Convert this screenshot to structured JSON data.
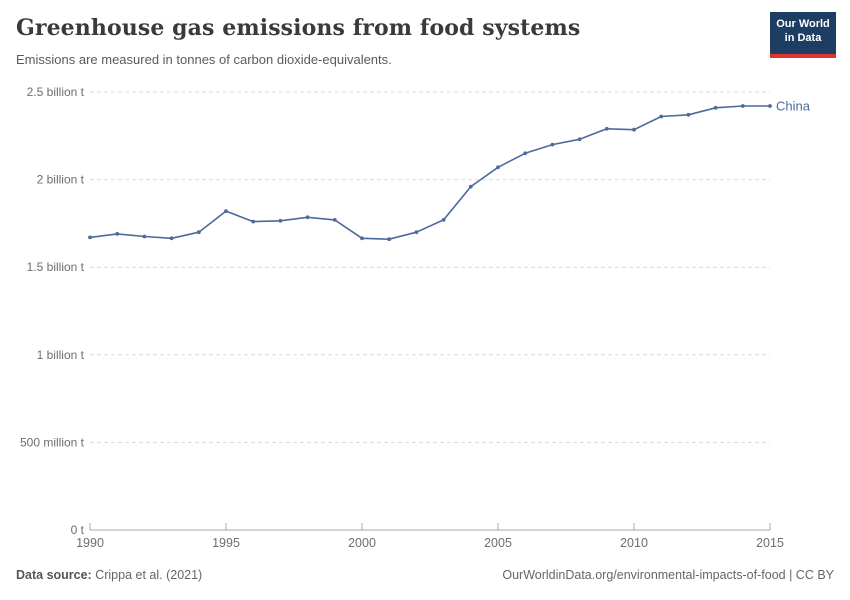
{
  "header": {
    "title": "Greenhouse gas emissions from food systems",
    "subtitle": "Emissions are measured in tonnes of carbon dioxide-equivalents.",
    "logo": {
      "line1": "Our World",
      "line2": "in Data"
    }
  },
  "chart_data": {
    "type": "line",
    "title": "Greenhouse gas emissions from food systems",
    "xlabel": "",
    "ylabel": "",
    "xlim": [
      1990,
      2015
    ],
    "ylim": [
      0,
      2500000000
    ],
    "grid": "horizontal-dashed",
    "legend_position": "end-of-line-label",
    "x_ticks": [
      1990,
      1995,
      2000,
      2005,
      2010,
      2015
    ],
    "y_ticks": [
      {
        "value": 0,
        "label": "0 t"
      },
      {
        "value": 500000000,
        "label": "500 million t"
      },
      {
        "value": 1000000000,
        "label": "1 billion t"
      },
      {
        "value": 1500000000,
        "label": "1.5 billion t"
      },
      {
        "value": 2000000000,
        "label": "2 billion t"
      },
      {
        "value": 2500000000,
        "label": "2.5 billion t"
      }
    ],
    "series": [
      {
        "name": "China",
        "color": "#4c6a9c",
        "x": [
          1990,
          1991,
          1992,
          1993,
          1994,
          1995,
          1996,
          1997,
          1998,
          1999,
          2000,
          2001,
          2002,
          2003,
          2004,
          2005,
          2006,
          2007,
          2008,
          2009,
          2010,
          2011,
          2012,
          2013,
          2014,
          2015
        ],
        "values": [
          1670000000,
          1690000000,
          1675000000,
          1665000000,
          1700000000,
          1820000000,
          1760000000,
          1765000000,
          1785000000,
          1770000000,
          1665000000,
          1660000000,
          1700000000,
          1770000000,
          1960000000,
          2070000000,
          2150000000,
          2200000000,
          2230000000,
          2290000000,
          2285000000,
          2360000000,
          2370000000,
          2410000000,
          2420000000,
          2420000000
        ]
      }
    ]
  },
  "footer": {
    "datasource_label": "Data source:",
    "datasource_value": "Crippa et al. (2021)",
    "attribution": "OurWorldinData.org/environmental-impacts-of-food | CC BY"
  },
  "colors": {
    "series_china": "#4c6a9c",
    "gridline": "#d9d9d9",
    "axis": "#a8a8a8",
    "tick_label": "#6e6e6e",
    "logo_bg": "#1d3d63",
    "logo_red": "#e0342e"
  }
}
